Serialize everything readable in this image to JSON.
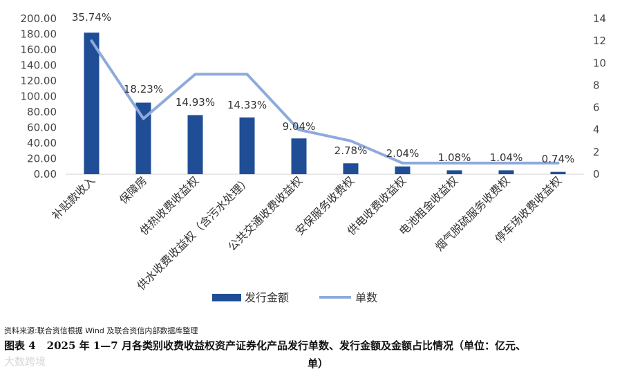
{
  "chart_data": {
    "type": "bar",
    "categories": [
      "补贴款收入",
      "保障房",
      "供热收费收益权",
      "供水收费收益权（含污水处理）",
      "公共交通收费收益权",
      "安保服务收费权",
      "供电收费收益权",
      "电池租金收益权",
      "烟气脱硫服务收费权",
      "停车场收费收益权"
    ],
    "series": [
      {
        "name": "发行金额",
        "type": "bar",
        "axis": "left",
        "values": [
          182,
          92,
          76,
          73,
          46,
          14,
          10,
          5,
          5,
          3
        ],
        "labels": [
          "35.74%",
          "18.23%",
          "14.93%",
          "14.33%",
          "9.04%",
          "2.78%",
          "2.04%",
          "1.08%",
          "1.04%",
          "0.74%"
        ],
        "color": "#1f4e96"
      },
      {
        "name": "单数",
        "type": "line",
        "axis": "right",
        "values": [
          12,
          5,
          9,
          9,
          4,
          3,
          1,
          1,
          1,
          1
        ],
        "color": "#8eaadc"
      }
    ],
    "yleft": {
      "min": 0,
      "max": 200,
      "ticks": [
        "0.00",
        "20.00",
        "40.00",
        "60.00",
        "80.00",
        "100.00",
        "120.00",
        "140.00",
        "160.00",
        "180.00",
        "200.00"
      ]
    },
    "yright": {
      "min": 0,
      "max": 14,
      "ticks": [
        "0",
        "2",
        "4",
        "6",
        "8",
        "10",
        "12",
        "14"
      ]
    },
    "legend_position": "bottom"
  },
  "source_text": "资料来源:联合资信根据 Wind 及联合资信内部数据库整理",
  "caption": {
    "label": "图表 4",
    "line1": "2025 年 1—7 月各类别收费收益权资产证券化产品发行单数、发行金额及金额占比情况（单位：亿元、",
    "line2": "单）"
  },
  "watermark": "大数跨境"
}
